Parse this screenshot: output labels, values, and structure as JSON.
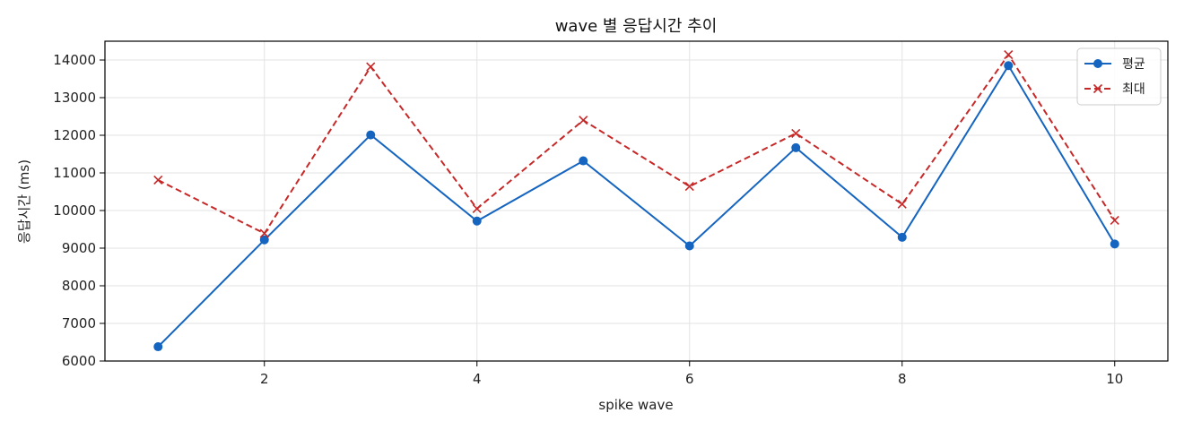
{
  "chart_data": {
    "type": "line",
    "title": "wave 별 응답시간 추이",
    "xlabel": "spike wave",
    "ylabel": "응답시간 (ms)",
    "xlim": [
      0.5,
      10.5
    ],
    "ylim": [
      6000,
      14500
    ],
    "xticks": [
      2,
      4,
      6,
      8,
      10
    ],
    "yticks": [
      6000,
      7000,
      8000,
      9000,
      10000,
      11000,
      12000,
      13000,
      14000
    ],
    "grid": true,
    "legend_position": "top-right",
    "x": [
      1,
      2,
      3,
      4,
      5,
      6,
      7,
      8,
      9,
      10
    ],
    "series": [
      {
        "name": "평균",
        "color": "#1565c0",
        "marker": "circle",
        "line_style": "solid",
        "values": [
          6380,
          9220,
          12010,
          9720,
          11320,
          9060,
          11670,
          9290,
          13850,
          9110
        ]
      },
      {
        "name": "최대",
        "color": "#c62828",
        "marker": "x",
        "line_style": "dashed",
        "values": [
          10810,
          9390,
          13820,
          10050,
          12400,
          10640,
          12050,
          10170,
          14140,
          9740
        ]
      }
    ]
  }
}
